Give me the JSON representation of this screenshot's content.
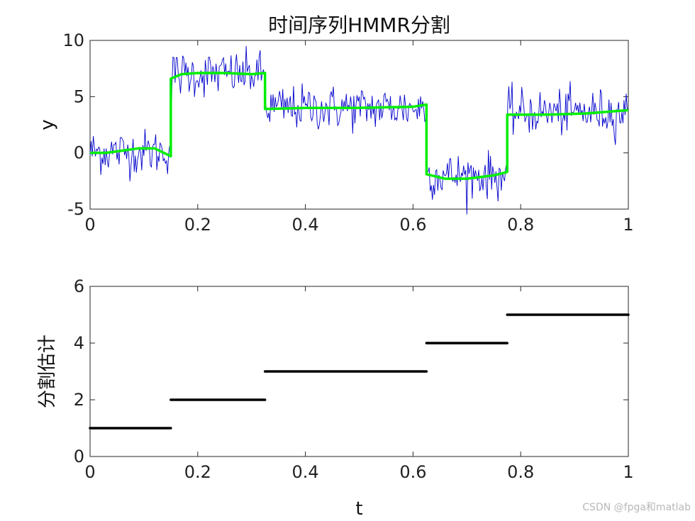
{
  "watermark": "CSDN @fpga和matlab",
  "colors": {
    "noise": "#0000cc",
    "fit": "#00ee00",
    "segments": "#000000",
    "axis": "#262626"
  },
  "chart_data": [
    {
      "type": "line",
      "title": "时间序列HMMR分割",
      "xlabel": "",
      "ylabel": "y",
      "xlim": [
        0,
        1
      ],
      "ylim": [
        -5,
        10
      ],
      "xticks": [
        "0",
        "0.2",
        "0.4",
        "0.6",
        "0.8",
        "1"
      ],
      "yticks": [
        "-5",
        "0",
        "5",
        "10"
      ],
      "grid": false,
      "series": [
        {
          "values_description_hidden": null,
          "regimes": [
            {
              "t0": 0.0,
              "t1": 0.15,
              "mean": 0.1,
              "std": 1.0
            },
            {
              "t0": 0.15,
              "t1": 0.325,
              "mean": 7.0,
              "std": 1.0
            },
            {
              "t0": 0.325,
              "t1": 0.625,
              "mean": 4.0,
              "std": 1.0
            },
            {
              "t0": 0.625,
              "t1": 0.775,
              "mean": -2.0,
              "std": 1.0
            },
            {
              "t0": 0.775,
              "t1": 1.0,
              "mean": 3.6,
              "std": 1.0
            }
          ]
        },
        {
          "fit": [
            [
              0.0,
              0.0
            ],
            [
              0.03,
              0.0
            ],
            [
              0.06,
              0.2
            ],
            [
              0.09,
              0.4
            ],
            [
              0.12,
              0.4
            ],
            [
              0.15,
              -0.3
            ],
            [
              0.15,
              6.6
            ],
            [
              0.17,
              7.0
            ],
            [
              0.2,
              7.1
            ],
            [
              0.25,
              7.1
            ],
            [
              0.3,
              7.0
            ],
            [
              0.325,
              7.1
            ],
            [
              0.325,
              3.9
            ],
            [
              0.4,
              4.0
            ],
            [
              0.5,
              4.0
            ],
            [
              0.6,
              4.1
            ],
            [
              0.625,
              4.3
            ],
            [
              0.625,
              -1.9
            ],
            [
              0.66,
              -2.3
            ],
            [
              0.7,
              -2.3
            ],
            [
              0.75,
              -2.0
            ],
            [
              0.775,
              -1.7
            ],
            [
              0.775,
              3.4
            ],
            [
              0.85,
              3.4
            ],
            [
              0.92,
              3.5
            ],
            [
              1.0,
              3.8
            ]
          ]
        }
      ]
    },
    {
      "type": "line",
      "title": "",
      "xlabel": "t",
      "ylabel": "分割估计",
      "xlim": [
        0,
        1
      ],
      "ylim": [
        0,
        6
      ],
      "xticks": [
        "0",
        "0.2",
        "0.4",
        "0.6",
        "0.8",
        "1"
      ],
      "yticks": [
        "0",
        "2",
        "4",
        "6"
      ],
      "grid": false,
      "segments": [
        {
          "t0": 0.0,
          "t1": 0.15,
          "value": 1
        },
        {
          "t0": 0.15,
          "t1": 0.325,
          "value": 2
        },
        {
          "t0": 0.325,
          "t1": 0.625,
          "value": 3
        },
        {
          "t0": 0.625,
          "t1": 0.775,
          "value": 4
        },
        {
          "t0": 0.775,
          "t1": 1.0,
          "value": 5
        }
      ]
    }
  ]
}
